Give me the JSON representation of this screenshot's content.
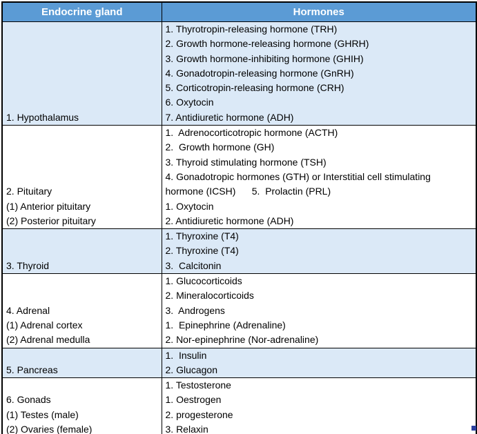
{
  "colors": {
    "header_bg": "#5b9bd5",
    "header_text": "#ffffff",
    "shaded_bg": "#dbe9f7",
    "border": "#000000",
    "body_text": "#000000",
    "handle": "#2b3f9e"
  },
  "table": {
    "headers": [
      "Endocrine gland",
      "Hormones"
    ],
    "rows": [
      {
        "shaded": true,
        "gland_lines": [
          "1. Hypothalamus"
        ],
        "hormone_lines": [
          "1. Thyrotropin-releasing hormone (TRH)",
          "2. Growth hormone-releasing hormone (GHRH)",
          "3. Growth hormone-inhibiting hormone (GHIH)",
          "4. Gonadotropin-releasing hormone (GnRH)",
          "5. Corticotropin-releasing hormone (CRH)",
          "6. Oxytocin",
          "7. Antidiuretic hormone (ADH)"
        ]
      },
      {
        "shaded": false,
        "gland_lines": [
          "2. Pituitary",
          "(1) Anterior pituitary",
          "(2) Posterior pituitary"
        ],
        "hormone_lines": [
          "1.  Adrenocorticotropic hormone (ACTH)",
          "2.  Growth hormone (GH)",
          "3. Thyroid stimulating hormone (TSH)",
          "4. Gonadotropic hormones (GTH) or Interstitial cell stimulating",
          "hormone (ICSH)      5.  Prolactin (PRL)",
          "1. Oxytocin",
          "2. Antidiuretic hormone (ADH)"
        ]
      },
      {
        "shaded": true,
        "gland_lines": [
          "3. Thyroid"
        ],
        "hormone_lines": [
          "1. Thyroxine (T4)",
          "2. Thyroxine (T4)",
          "3.  Calcitonin"
        ]
      },
      {
        "shaded": false,
        "gland_lines": [
          "4. Adrenal",
          "(1) Adrenal cortex",
          "(2) Adrenal medulla"
        ],
        "hormone_lines": [
          "1. Glucocorticoids",
          "2. Mineralocorticoids",
          "3.  Androgens",
          "1.  Epinephrine (Adrenaline)",
          "2. Nor-epinephrine (Nor-adrenaline)"
        ]
      },
      {
        "shaded": true,
        "gland_lines": [
          "5. Pancreas"
        ],
        "hormone_lines": [
          "1.  Insulin",
          "2. Glucagon"
        ]
      },
      {
        "shaded": false,
        "gland_lines": [
          "6. Gonads",
          "(1) Testes (male)",
          "(2) Ovaries (female)"
        ],
        "hormone_lines": [
          "1. Testosterone",
          "1. Oestrogen",
          "2. progesterone",
          "3. Relaxin"
        ]
      }
    ]
  }
}
